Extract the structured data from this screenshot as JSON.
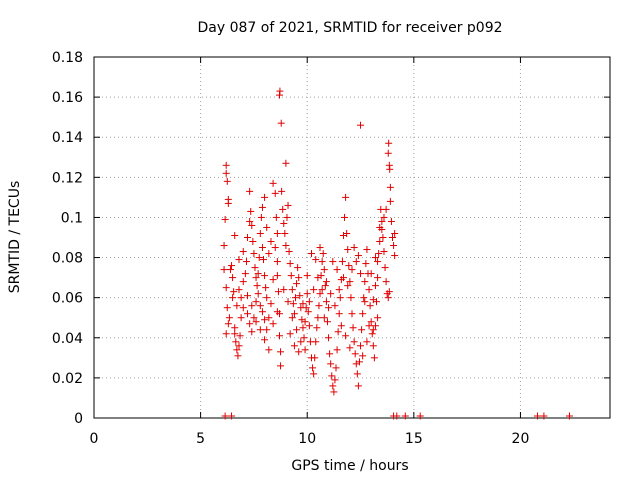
{
  "chart_data": {
    "type": "scatter",
    "title": "Day 087 of 2021, SRMTID for receiver p092",
    "xlabel": "GPS time / hours",
    "ylabel": "SRMTID / TECUs",
    "xlim": [
      0,
      24.2
    ],
    "ylim": [
      0,
      0.18
    ],
    "xticks": [
      0,
      5,
      10,
      15,
      20
    ],
    "yticks": [
      0,
      0.02,
      0.04,
      0.06,
      0.08,
      0.1,
      0.12,
      0.14,
      0.16,
      0.18
    ],
    "ytick_labels": [
      "0",
      "0.02",
      "0.04",
      "0.06",
      "0.08",
      "0.1",
      "0.12",
      "0.14",
      "0.16",
      "0.18"
    ],
    "grid": true,
    "marker": "+",
    "color": "#e00000",
    "series": [
      {
        "name": "SRMTID",
        "points": [
          [
            6.1,
            0.074
          ],
          [
            6.1,
            0.086
          ],
          [
            6.15,
            0.099
          ],
          [
            6.2,
            0.122
          ],
          [
            6.2,
            0.126
          ],
          [
            6.25,
            0.118
          ],
          [
            6.3,
            0.109
          ],
          [
            6.3,
            0.107
          ],
          [
            6.2,
            0.065
          ],
          [
            6.25,
            0.055
          ],
          [
            6.3,
            0.047
          ],
          [
            6.2,
            0.042
          ],
          [
            6.35,
            0.05
          ],
          [
            6.4,
            0.074
          ],
          [
            6.45,
            0.076
          ],
          [
            6.5,
            0.07
          ],
          [
            6.55,
            0.063
          ],
          [
            6.5,
            0.06
          ],
          [
            6.6,
            0.045
          ],
          [
            6.6,
            0.042
          ],
          [
            6.65,
            0.038
          ],
          [
            6.7,
            0.034
          ],
          [
            6.75,
            0.031
          ],
          [
            6.8,
            0.036
          ],
          [
            6.85,
            0.041
          ],
          [
            6.9,
            0.05
          ],
          [
            6.7,
            0.056
          ],
          [
            6.8,
            0.064
          ],
          [
            6.9,
            0.06
          ],
          [
            7.0,
            0.055
          ],
          [
            7.0,
            0.068
          ],
          [
            7.1,
            0.072
          ],
          [
            7.15,
            0.078
          ],
          [
            7.2,
            0.09
          ],
          [
            7.3,
            0.098
          ],
          [
            7.3,
            0.113
          ],
          [
            7.35,
            0.103
          ],
          [
            7.4,
            0.096
          ],
          [
            7.45,
            0.088
          ],
          [
            7.5,
            0.082
          ],
          [
            7.55,
            0.075
          ],
          [
            7.6,
            0.07
          ],
          [
            7.65,
            0.066
          ],
          [
            7.7,
            0.072
          ],
          [
            7.75,
            0.08
          ],
          [
            7.8,
            0.092
          ],
          [
            7.85,
            0.1
          ],
          [
            7.9,
            0.085
          ],
          [
            7.95,
            0.079
          ],
          [
            8.0,
            0.071
          ],
          [
            8.05,
            0.065
          ],
          [
            8.1,
            0.06
          ],
          [
            7.2,
            0.052
          ],
          [
            7.3,
            0.047
          ],
          [
            7.4,
            0.043
          ],
          [
            7.5,
            0.05
          ],
          [
            7.6,
            0.058
          ],
          [
            7.7,
            0.062
          ],
          [
            7.8,
            0.056
          ],
          [
            7.9,
            0.053
          ],
          [
            8.0,
            0.049
          ],
          [
            8.1,
            0.044
          ],
          [
            8.2,
            0.05
          ],
          [
            8.3,
            0.057
          ],
          [
            8.4,
            0.069
          ],
          [
            8.4,
            0.117
          ],
          [
            8.5,
            0.112
          ],
          [
            8.55,
            0.1
          ],
          [
            8.6,
            0.092
          ],
          [
            8.6,
            0.078
          ],
          [
            8.65,
            0.063
          ],
          [
            8.7,
            0.052
          ],
          [
            8.7,
            0.041
          ],
          [
            8.75,
            0.033
          ],
          [
            8.75,
            0.026
          ],
          [
            8.7,
            0.161
          ],
          [
            8.72,
            0.163
          ],
          [
            8.78,
            0.147
          ],
          [
            8.8,
            0.113
          ],
          [
            8.85,
            0.104
          ],
          [
            8.9,
            0.097
          ],
          [
            8.95,
            0.092
          ],
          [
            9.0,
            0.086
          ],
          [
            9.05,
            0.1
          ],
          [
            9.1,
            0.106
          ],
          [
            9.0,
            0.127
          ],
          [
            9.15,
            0.083
          ],
          [
            9.2,
            0.077
          ],
          [
            9.25,
            0.071
          ],
          [
            9.3,
            0.064
          ],
          [
            9.35,
            0.057
          ],
          [
            9.4,
            0.052
          ],
          [
            9.45,
            0.06
          ],
          [
            9.5,
            0.067
          ],
          [
            9.55,
            0.075
          ],
          [
            9.6,
            0.07
          ],
          [
            9.65,
            0.061
          ],
          [
            9.7,
            0.055
          ],
          [
            9.75,
            0.049
          ],
          [
            9.8,
            0.045
          ],
          [
            9.85,
            0.04
          ],
          [
            9.9,
            0.048
          ],
          [
            9.95,
            0.055
          ],
          [
            10.0,
            0.062
          ],
          [
            10.05,
            0.053
          ],
          [
            10.1,
            0.046
          ],
          [
            10.15,
            0.038
          ],
          [
            10.2,
            0.03
          ],
          [
            10.25,
            0.025
          ],
          [
            10.3,
            0.022
          ],
          [
            10.35,
            0.03
          ],
          [
            10.4,
            0.038
          ],
          [
            10.45,
            0.045
          ],
          [
            10.5,
            0.05
          ],
          [
            10.55,
            0.056
          ],
          [
            10.6,
            0.062
          ],
          [
            10.65,
            0.071
          ],
          [
            10.7,
            0.078
          ],
          [
            10.75,
            0.082
          ],
          [
            10.8,
            0.074
          ],
          [
            10.85,
            0.066
          ],
          [
            10.9,
            0.058
          ],
          [
            10.95,
            0.048
          ],
          [
            11.0,
            0.04
          ],
          [
            11.05,
            0.032
          ],
          [
            11.1,
            0.027
          ],
          [
            11.15,
            0.021
          ],
          [
            11.2,
            0.016
          ],
          [
            11.25,
            0.013
          ],
          [
            11.3,
            0.019
          ],
          [
            11.35,
            0.025
          ],
          [
            11.4,
            0.034
          ],
          [
            11.45,
            0.043
          ],
          [
            11.5,
            0.052
          ],
          [
            11.55,
            0.06
          ],
          [
            11.6,
            0.069
          ],
          [
            11.65,
            0.078
          ],
          [
            11.7,
            0.091
          ],
          [
            11.75,
            0.1
          ],
          [
            11.8,
            0.11
          ],
          [
            11.85,
            0.092
          ],
          [
            11.9,
            0.084
          ],
          [
            11.95,
            0.076
          ],
          [
            12.0,
            0.068
          ],
          [
            12.05,
            0.06
          ],
          [
            12.1,
            0.052
          ],
          [
            12.15,
            0.045
          ],
          [
            12.2,
            0.038
          ],
          [
            12.25,
            0.032
          ],
          [
            12.3,
            0.027
          ],
          [
            12.35,
            0.022
          ],
          [
            12.4,
            0.016
          ],
          [
            12.5,
            0.146
          ],
          [
            12.45,
            0.028
          ],
          [
            12.5,
            0.036
          ],
          [
            12.55,
            0.044
          ],
          [
            12.6,
            0.052
          ],
          [
            12.65,
            0.06
          ],
          [
            12.7,
            0.068
          ],
          [
            12.75,
            0.077
          ],
          [
            12.8,
            0.084
          ],
          [
            12.85,
            0.072
          ],
          [
            12.9,
            0.064
          ],
          [
            12.95,
            0.056
          ],
          [
            13.0,
            0.048
          ],
          [
            13.05,
            0.042
          ],
          [
            13.1,
            0.036
          ],
          [
            13.15,
            0.03
          ],
          [
            13.2,
            0.046
          ],
          [
            13.25,
            0.058
          ],
          [
            13.3,
            0.07
          ],
          [
            13.35,
            0.082
          ],
          [
            13.4,
            0.095
          ],
          [
            13.45,
            0.104
          ],
          [
            13.5,
            0.098
          ],
          [
            13.55,
            0.09
          ],
          [
            13.6,
            0.083
          ],
          [
            13.65,
            0.075
          ],
          [
            13.7,
            0.068
          ],
          [
            13.75,
            0.062
          ],
          [
            13.8,
            0.06
          ],
          [
            13.85,
            0.063
          ],
          [
            13.8,
            0.132
          ],
          [
            13.82,
            0.137
          ],
          [
            13.85,
            0.126
          ],
          [
            13.87,
            0.124
          ],
          [
            13.9,
            0.115
          ],
          [
            13.9,
            0.108
          ],
          [
            13.95,
            0.098
          ],
          [
            14.0,
            0.09
          ],
          [
            14.05,
            0.086
          ],
          [
            14.1,
            0.081
          ],
          [
            14.1,
            0.092
          ],
          [
            13.7,
            0.104
          ],
          [
            13.6,
            0.1
          ],
          [
            13.5,
            0.094
          ],
          [
            13.4,
            0.088
          ],
          [
            13.3,
            0.078
          ],
          [
            13.2,
            0.066
          ],
          [
            13.1,
            0.059
          ],
          [
            8.2,
            0.082
          ],
          [
            8.3,
            0.088
          ],
          [
            8.1,
            0.095
          ],
          [
            7.9,
            0.105
          ],
          [
            8.0,
            0.11
          ],
          [
            8.5,
            0.085
          ],
          [
            8.6,
            0.071
          ],
          [
            8.9,
            0.064
          ],
          [
            9.1,
            0.058
          ],
          [
            9.3,
            0.05
          ],
          [
            9.5,
            0.044
          ],
          [
            9.7,
            0.038
          ],
          [
            9.9,
            0.034
          ],
          [
            10.1,
            0.058
          ],
          [
            10.3,
            0.064
          ],
          [
            10.5,
            0.07
          ],
          [
            10.7,
            0.064
          ],
          [
            10.9,
            0.068
          ],
          [
            11.1,
            0.062
          ],
          [
            11.3,
            0.056
          ],
          [
            11.5,
            0.064
          ],
          [
            11.7,
            0.07
          ],
          [
            11.9,
            0.066
          ],
          [
            12.1,
            0.074
          ],
          [
            12.3,
            0.078
          ],
          [
            12.5,
            0.072
          ],
          [
            12.7,
            0.058
          ],
          [
            12.9,
            0.046
          ],
          [
            13.1,
            0.044
          ],
          [
            13.3,
            0.05
          ],
          [
            12.2,
            0.085
          ],
          [
            12.4,
            0.081
          ],
          [
            11.4,
            0.074
          ],
          [
            11.2,
            0.078
          ],
          [
            10.6,
            0.085
          ],
          [
            10.4,
            0.079
          ],
          [
            10.2,
            0.082
          ],
          [
            6.6,
            0.091
          ],
          [
            6.8,
            0.079
          ],
          [
            7.0,
            0.083
          ],
          [
            7.2,
            0.061
          ],
          [
            7.4,
            0.056
          ],
          [
            7.6,
            0.048
          ],
          [
            7.8,
            0.044
          ],
          [
            8.0,
            0.039
          ],
          [
            8.2,
            0.034
          ],
          [
            8.4,
            0.047
          ],
          [
            8.6,
            0.053
          ],
          [
            9.2,
            0.042
          ],
          [
            9.4,
            0.036
          ],
          [
            9.6,
            0.033
          ],
          [
            9.8,
            0.057
          ],
          [
            10.0,
            0.071
          ],
          [
            10.8,
            0.05
          ],
          [
            11.0,
            0.055
          ],
          [
            11.6,
            0.046
          ],
          [
            11.8,
            0.041
          ],
          [
            12.0,
            0.035
          ],
          [
            12.6,
            0.031
          ],
          [
            12.8,
            0.038
          ],
          [
            13.0,
            0.072
          ],
          [
            13.2,
            0.08
          ],
          [
            6.15,
            0.001
          ],
          [
            6.45,
            0.001
          ],
          [
            14.05,
            0.001
          ],
          [
            14.2,
            0.001
          ],
          [
            14.6,
            0.001
          ],
          [
            15.3,
            0.001
          ],
          [
            20.8,
            0.001
          ],
          [
            21.1,
            0.001
          ],
          [
            22.3,
            0.001
          ]
        ]
      }
    ]
  }
}
